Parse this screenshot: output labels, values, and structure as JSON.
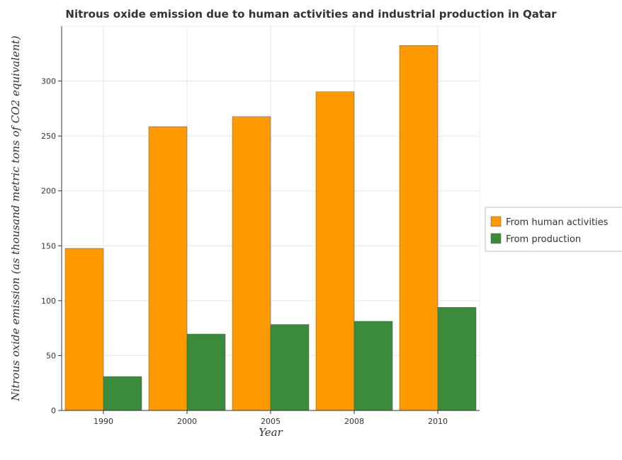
{
  "chart_data": {
    "type": "bar",
    "title": "Nitrous oxide emission due to human activities and industrial production in Qatar",
    "xlabel": "Year",
    "ylabel": "Nitrous oxide emission (as thousand metric tons of CO2 equivalent)",
    "categories": [
      "1990",
      "2000",
      "2005",
      "2008",
      "2010"
    ],
    "series": [
      {
        "name": "From human activities",
        "values": [
          147.6,
          258.5,
          267.6,
          290.2,
          332.4
        ],
        "color": "#ff9900"
      },
      {
        "name": "From production",
        "values": [
          30.9,
          69.6,
          78.3,
          81.2,
          93.9
        ],
        "color": "#3a8c3a"
      }
    ],
    "ylim": [
      0,
      350
    ],
    "yticks": [
      0,
      50,
      100,
      150,
      200,
      250,
      300
    ],
    "grid": true,
    "legend_position": "right"
  }
}
